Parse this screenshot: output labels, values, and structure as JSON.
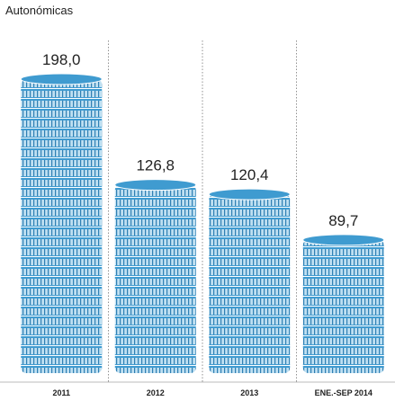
{
  "chart_data": {
    "type": "bar",
    "title": "Autonómicas",
    "categories": [
      "2011",
      "2012",
      "2013",
      "ENE.-SEP 2014"
    ],
    "values": [
      198.0,
      126.8,
      120.4,
      89.7
    ],
    "value_labels": [
      "198,0",
      "126,8",
      "120,4",
      "89,7"
    ],
    "color": "#3f9bd0"
  }
}
